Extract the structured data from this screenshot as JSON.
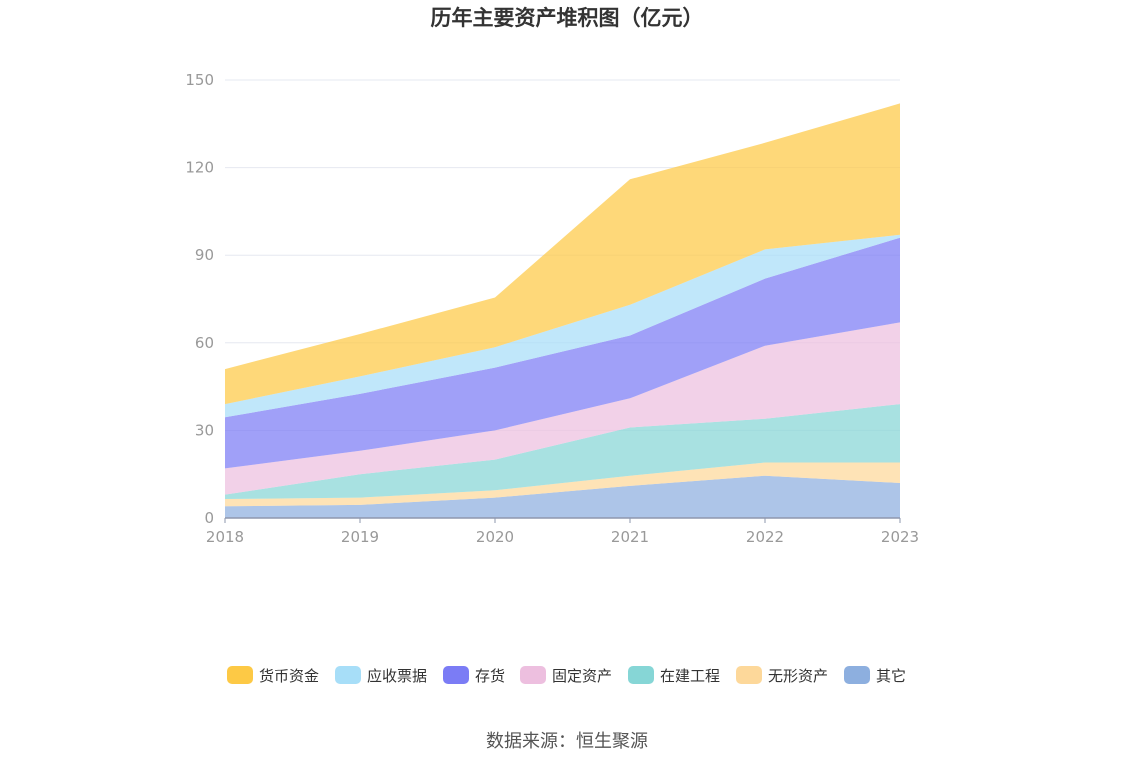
{
  "chart_data": {
    "type": "area",
    "stacked": true,
    "title": "历年主要资产堆积图（亿元）",
    "x": [
      "2018",
      "2019",
      "2020",
      "2021",
      "2022",
      "2023"
    ],
    "ylim": [
      0,
      150
    ],
    "yticks": [
      0,
      30,
      60,
      90,
      120,
      150
    ],
    "grid": true,
    "legend_position": "bottom",
    "series": [
      {
        "name": "其它",
        "color": "#8DAFDF",
        "values": [
          4,
          4.5,
          7,
          11,
          14.5,
          12
        ]
      },
      {
        "name": "无形资产",
        "color": "#FDD89A",
        "values": [
          2.5,
          2.5,
          2.5,
          3.5,
          4.5,
          7
        ]
      },
      {
        "name": "在建工程",
        "color": "#86D6D6",
        "values": [
          1.5,
          8,
          10.5,
          16.5,
          15,
          20
        ]
      },
      {
        "name": "固定资产",
        "color": "#EDBFDF",
        "values": [
          9,
          8,
          10,
          10,
          25,
          28
        ]
      },
      {
        "name": "存货",
        "color": "#7B7CF5",
        "values": [
          17.5,
          19.5,
          21.5,
          21.5,
          23,
          29
        ]
      },
      {
        "name": "应收票据",
        "color": "#A7DEF8",
        "values": [
          4.5,
          6,
          7,
          10.5,
          10,
          1
        ]
      },
      {
        "name": "货币资金",
        "color": "#FDC945",
        "values": [
          12,
          14.5,
          17,
          43,
          36.5,
          45
        ]
      }
    ],
    "legend_order": [
      "货币资金",
      "应收票据",
      "存货",
      "固定资产",
      "在建工程",
      "无形资产",
      "其它"
    ]
  },
  "footer": {
    "source": "数据来源：恒生聚源"
  }
}
